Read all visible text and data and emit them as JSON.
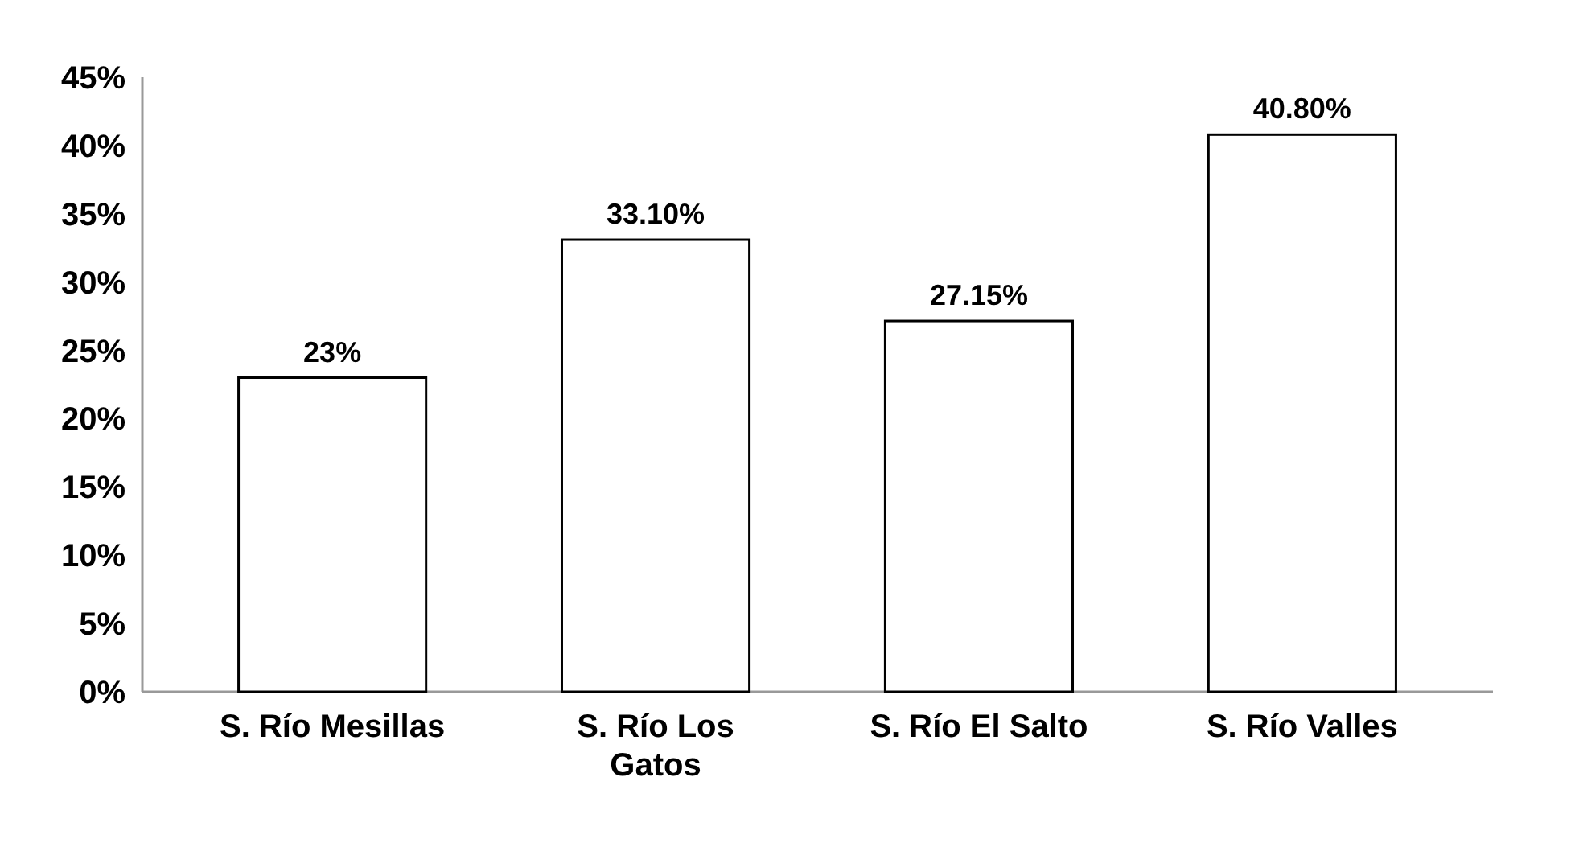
{
  "chart_data": {
    "type": "bar",
    "categories": [
      "S. Río Mesillas",
      "S. Río Los Gatos",
      "S. Río El Salto",
      "S. Río Valles"
    ],
    "values": [
      23,
      33.1,
      27.15,
      40.8
    ],
    "value_labels": [
      "23%",
      "33.10%",
      "27.15%",
      "40.80%"
    ],
    "color": "#ffffff",
    "ylim": [
      0,
      45
    ],
    "yticks": [
      {
        "value": 0,
        "label": "0%"
      },
      {
        "value": 5,
        "label": "5%"
      },
      {
        "value": 10,
        "label": "10%"
      },
      {
        "value": 15,
        "label": "15%"
      },
      {
        "value": 20,
        "label": "20%"
      },
      {
        "value": 25,
        "label": "25%"
      },
      {
        "value": 30,
        "label": "30%"
      },
      {
        "value": 35,
        "label": "35%"
      },
      {
        "value": 40,
        "label": "40%"
      },
      {
        "value": 45,
        "label": "45%"
      }
    ],
    "grid": false
  }
}
